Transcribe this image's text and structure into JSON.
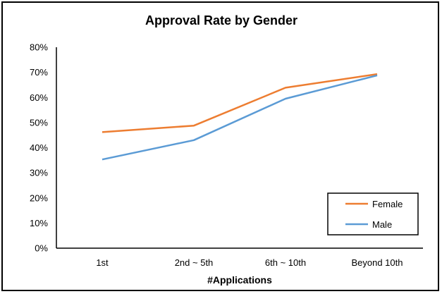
{
  "chart_data": {
    "type": "line",
    "title": "Approval Rate by Gender",
    "xlabel": "#Applications",
    "ylabel": "",
    "categories": [
      "1st",
      "2nd ~ 5th",
      "6th ~ 10th",
      "Beyond 10th"
    ],
    "ylim": [
      0,
      0.8
    ],
    "yticks": [
      "0%",
      "10%",
      "20%",
      "30%",
      "40%",
      "50%",
      "60%",
      "70%",
      "80%"
    ],
    "grid": false,
    "legend_position": "bottom-right",
    "series": [
      {
        "name": "Female",
        "color": "#ED7D31",
        "values": [
          0.462,
          0.488,
          0.639,
          0.693
        ]
      },
      {
        "name": "Male",
        "color": "#5B9BD5",
        "values": [
          0.353,
          0.43,
          0.595,
          0.688
        ]
      }
    ]
  }
}
